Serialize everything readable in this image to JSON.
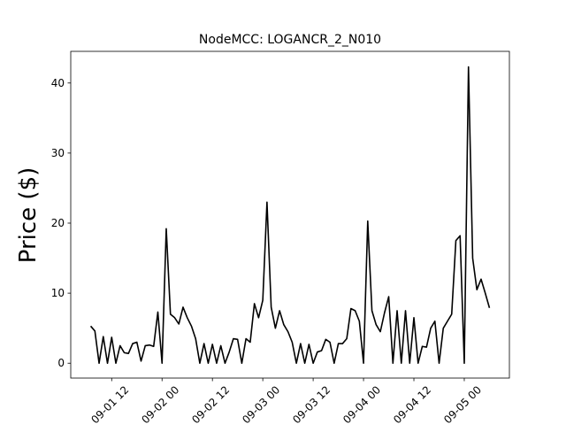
{
  "chart_data": {
    "type": "line",
    "title": "NodeMCC: LOGANCR_2_N010",
    "y_label": "Price ($)",
    "x": [
      "09-01 07",
      "09-01 08",
      "09-01 09",
      "09-01 10",
      "09-01 11",
      "09-01 12",
      "09-01 13",
      "09-01 14",
      "09-01 15",
      "09-01 16",
      "09-01 17",
      "09-01 18",
      "09-01 19",
      "09-01 20",
      "09-01 21",
      "09-01 22",
      "09-01 23",
      "09-02 00",
      "09-02 01",
      "09-02 02",
      "09-02 03",
      "09-02 04",
      "09-02 05",
      "09-02 06",
      "09-02 07",
      "09-02 08",
      "09-02 09",
      "09-02 10",
      "09-02 11",
      "09-02 12",
      "09-02 13",
      "09-02 14",
      "09-02 15",
      "09-02 16",
      "09-02 17",
      "09-02 18",
      "09-02 19",
      "09-02 20",
      "09-02 21",
      "09-02 22",
      "09-02 23",
      "09-03 00",
      "09-03 01",
      "09-03 02",
      "09-03 03",
      "09-03 04",
      "09-03 05",
      "09-03 06",
      "09-03 07",
      "09-03 08",
      "09-03 09",
      "09-03 10",
      "09-03 11",
      "09-03 12",
      "09-03 13",
      "09-03 14",
      "09-03 15",
      "09-03 16",
      "09-03 17",
      "09-03 18",
      "09-03 19",
      "09-03 20",
      "09-03 21",
      "09-03 22",
      "09-03 23",
      "09-04 00",
      "09-04 01",
      "09-04 02",
      "09-04 03",
      "09-04 04",
      "09-04 05",
      "09-04 06",
      "09-04 07",
      "09-04 08",
      "09-04 09",
      "09-04 10",
      "09-04 11",
      "09-04 12",
      "09-04 13",
      "09-04 14",
      "09-04 15",
      "09-04 16",
      "09-04 17",
      "09-04 18",
      "09-04 19",
      "09-04 20",
      "09-04 21",
      "09-04 22",
      "09-04 23",
      "09-05 00",
      "09-05 01",
      "09-05 02",
      "09-05 03",
      "09-05 04",
      "09-05 05",
      "09-05 06"
    ],
    "series": [
      {
        "color": "#000000",
        "values": [
          5.3,
          4.6,
          0,
          3.8,
          0,
          3.7,
          0,
          2.5,
          1.5,
          1.4,
          2.8,
          3.0,
          0.3,
          2.5,
          2.6,
          2.4,
          7.3,
          0,
          19.2,
          7.0,
          6.5,
          5.6,
          8.0,
          6.5,
          5.3,
          3.5,
          0,
          2.8,
          0,
          2.7,
          0,
          2.5,
          0,
          1.6,
          3.5,
          3.4,
          0,
          3.5,
          3.0,
          8.5,
          6.5,
          9.0,
          23.0,
          8.0,
          5.0,
          7.5,
          5.5,
          4.5,
          3.0,
          0,
          2.8,
          0,
          2.7,
          0,
          1.6,
          1.8,
          3.4,
          3.0,
          0,
          2.8,
          2.8,
          3.5,
          7.8,
          7.5,
          6.0,
          0,
          20.3,
          7.5,
          5.5,
          4.5,
          7.2,
          9.5,
          0,
          7.5,
          0,
          7.5,
          0,
          6.5,
          0,
          2.4,
          2.3,
          5.0,
          6.0,
          0,
          5.0,
          6.0,
          7.0,
          17.5,
          18.2,
          0,
          42.3,
          15.0,
          10.5,
          12.0,
          10.0,
          7.9
        ]
      }
    ],
    "xlim": [
      "09-01 02:15",
      "09-05 10:45"
    ],
    "xticks": [
      "09-01 12",
      "09-02 00",
      "09-02 12",
      "09-03 00",
      "09-03 12",
      "09-04 00",
      "09-04 12",
      "09-05 00"
    ],
    "ylim": [
      -2.12,
      44.52
    ],
    "yticks": [
      0,
      10,
      20,
      30,
      40
    ]
  }
}
